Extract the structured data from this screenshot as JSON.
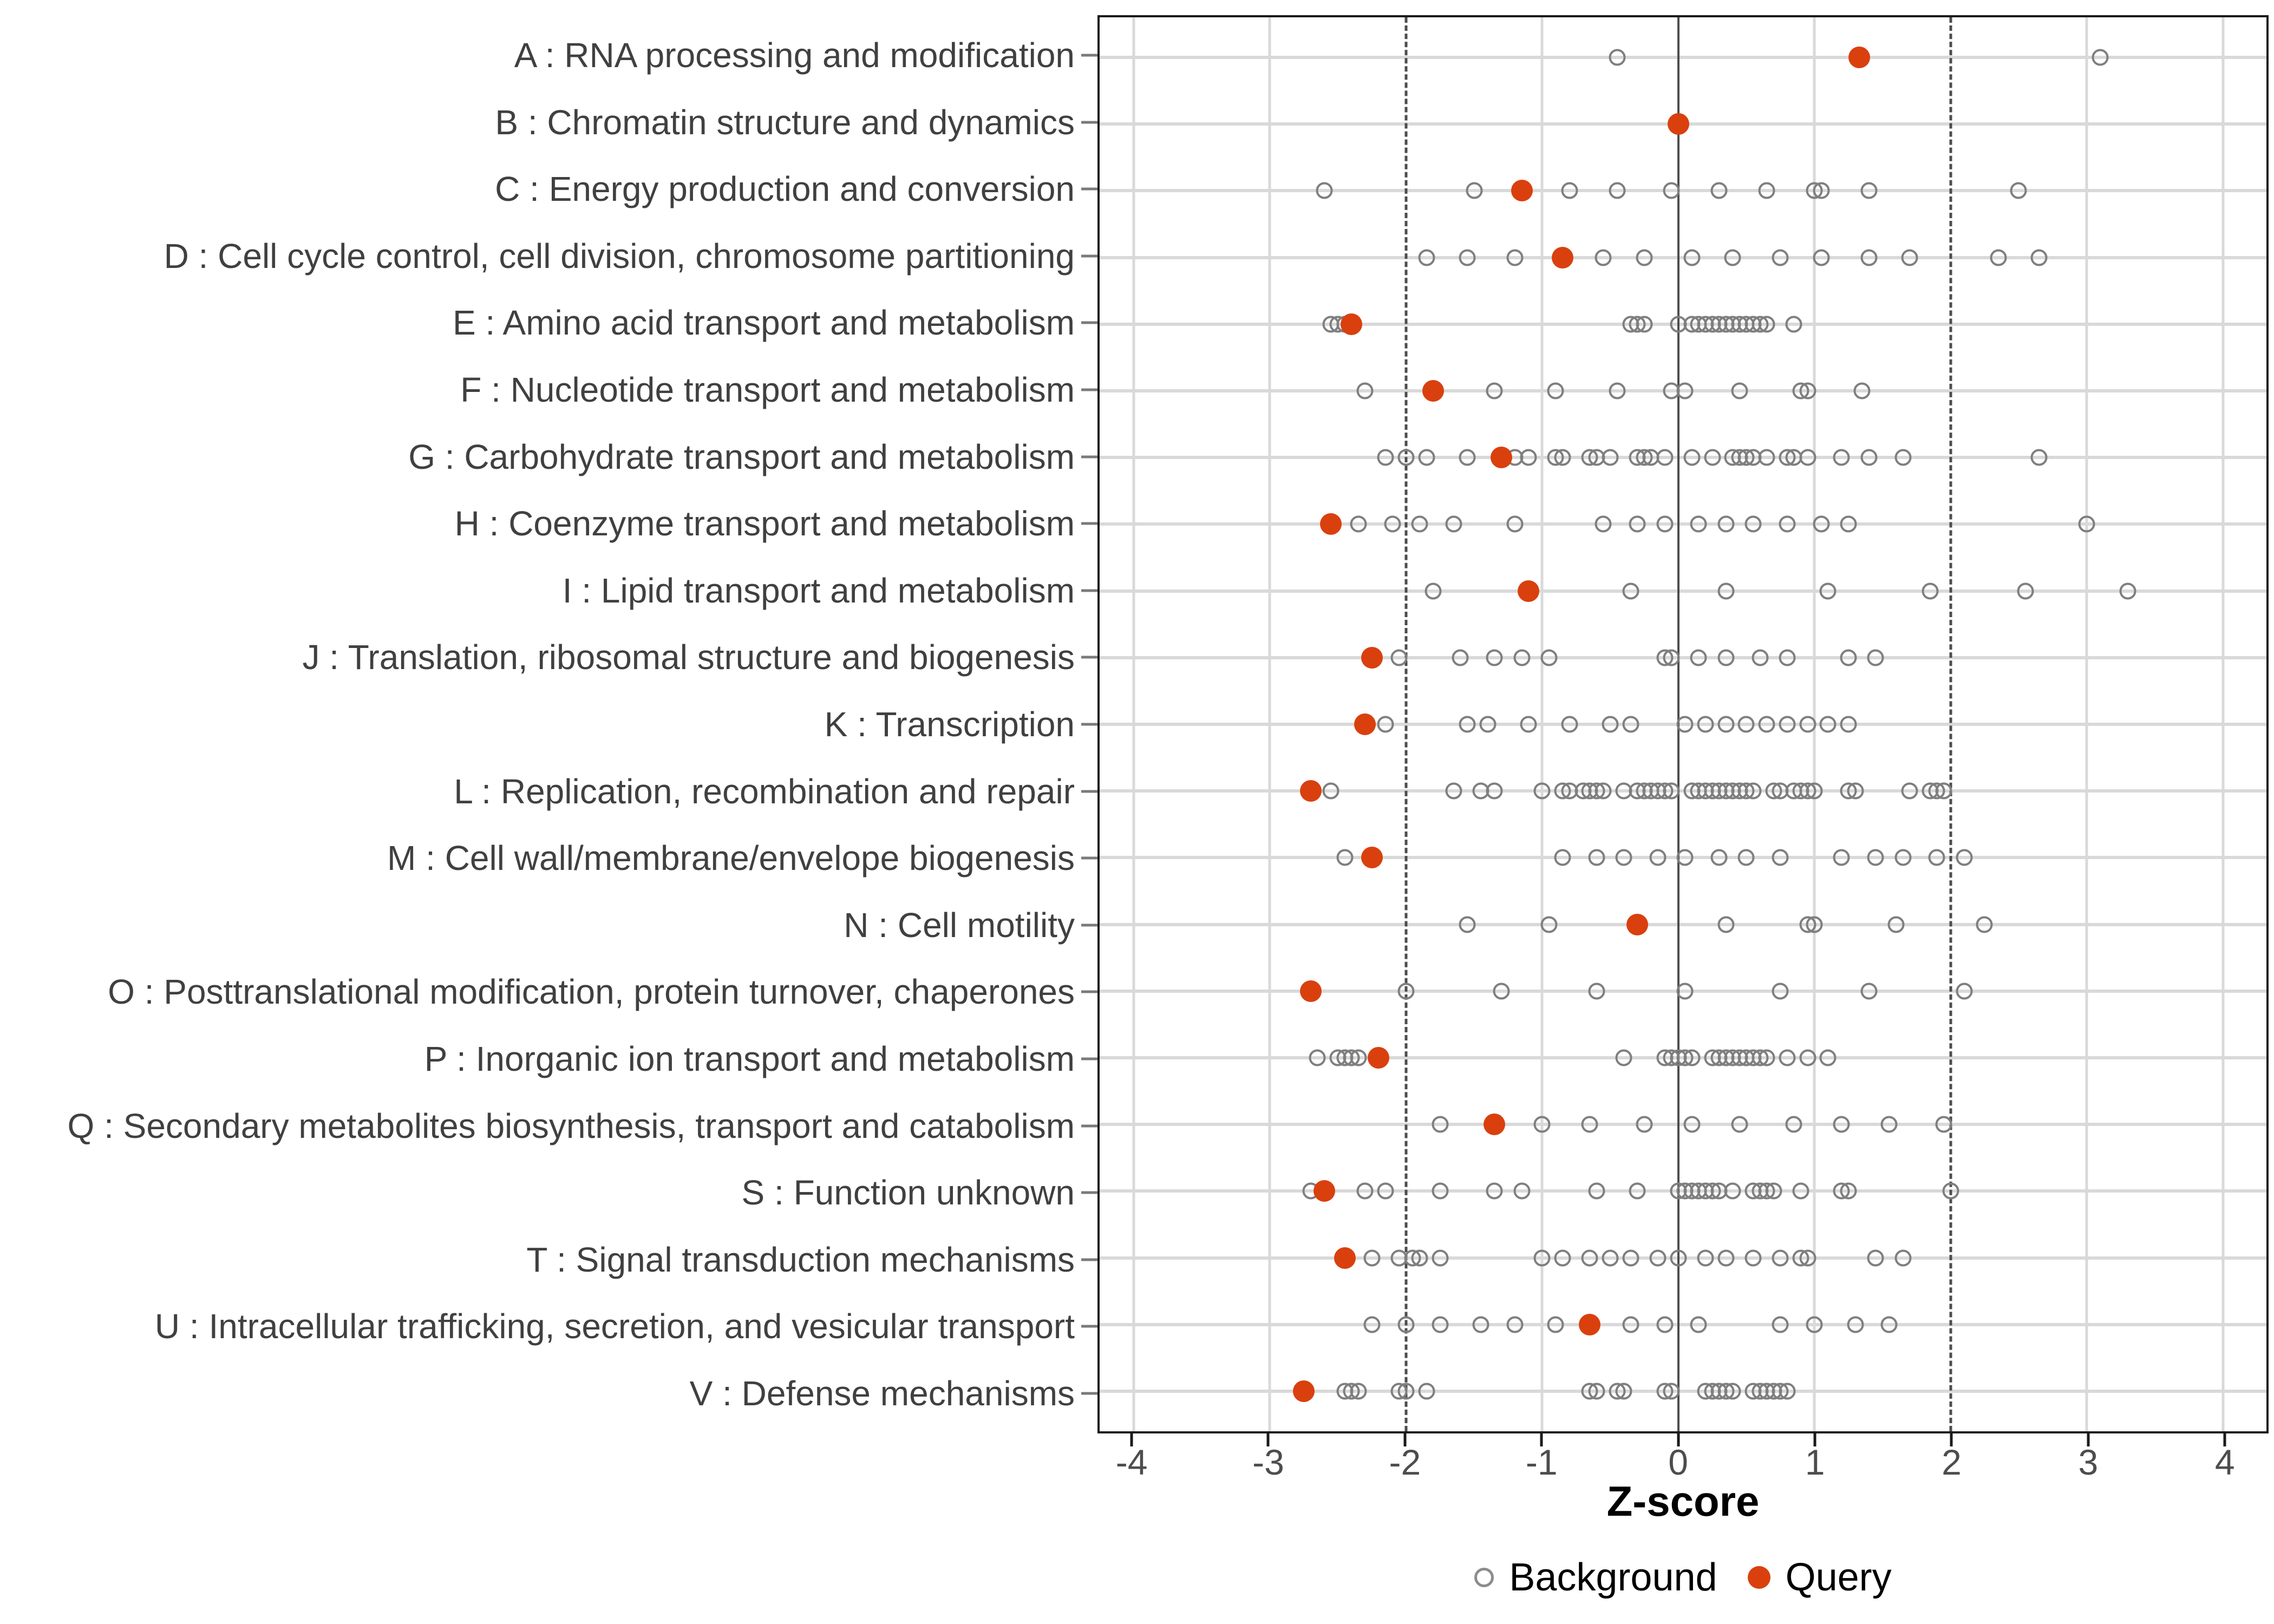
{
  "axis": {
    "x_title": "Z-score",
    "x_ticks": [
      -4,
      -3,
      -2,
      -1,
      0,
      1,
      2,
      3,
      4
    ],
    "x_range": [
      -4.25,
      4.32
    ]
  },
  "reference_lines": {
    "zero": 0,
    "dashed": [
      -2,
      2
    ]
  },
  "legend": {
    "background_label": "Background",
    "query_label": "Query"
  },
  "colors": {
    "query": "#D9400E",
    "background_stroke": "#7F7F7F",
    "gridline": "#D9D9D9",
    "reference_line": "#4D4D4D",
    "axis_text": "#404040"
  },
  "chart_data": {
    "type": "scatter",
    "subtype": "horizontal-dot-strip",
    "title": "",
    "xlabel": "Z-score",
    "ylabel": "",
    "xlim": [
      -4.25,
      4.32
    ],
    "grid": true,
    "legend_position": "bottom",
    "series_names": [
      "Background",
      "Query"
    ],
    "categories": [
      {
        "code": "A",
        "label": "A : RNA processing and modification",
        "query": 1.33,
        "background": [
          -0.45,
          3.1
        ]
      },
      {
        "code": "B",
        "label": "B : Chromatin structure and dynamics",
        "query": 0.0,
        "background": []
      },
      {
        "code": "C",
        "label": "C : Energy production and conversion",
        "query": -1.15,
        "background": [
          -2.6,
          -1.5,
          -0.8,
          -0.45,
          -0.05,
          0.3,
          0.65,
          1.0,
          1.05,
          1.4,
          2.5
        ]
      },
      {
        "code": "D",
        "label": "D : Cell cycle control, cell division, chromosome partitioning",
        "query": -0.85,
        "background": [
          -1.85,
          -1.55,
          -1.2,
          -0.55,
          -0.25,
          0.1,
          0.4,
          0.75,
          1.05,
          1.4,
          1.7,
          2.35,
          2.65
        ]
      },
      {
        "code": "E",
        "label": "E : Amino acid transport and metabolism",
        "query": -2.4,
        "background": [
          -2.55,
          -2.5,
          -2.45,
          -0.35,
          -0.3,
          -0.25,
          0.0,
          0.1,
          0.15,
          0.2,
          0.25,
          0.3,
          0.35,
          0.4,
          0.45,
          0.5,
          0.55,
          0.6,
          0.65,
          0.85
        ]
      },
      {
        "code": "F",
        "label": "F : Nucleotide transport and metabolism",
        "query": -1.8,
        "background": [
          -2.3,
          -1.35,
          -0.9,
          -0.45,
          -0.05,
          0.05,
          0.45,
          0.9,
          0.95,
          1.35
        ]
      },
      {
        "code": "G",
        "label": "G : Carbohydrate transport and metabolism",
        "query": -1.3,
        "background": [
          -2.15,
          -2.0,
          -1.85,
          -1.55,
          -1.2,
          -1.1,
          -0.9,
          -0.85,
          -0.65,
          -0.6,
          -0.5,
          -0.3,
          -0.25,
          -0.2,
          -0.1,
          0.1,
          0.25,
          0.4,
          0.45,
          0.5,
          0.55,
          0.65,
          0.8,
          0.85,
          0.95,
          1.2,
          1.4,
          1.65,
          2.65
        ]
      },
      {
        "code": "H",
        "label": "H : Coenzyme transport and metabolism",
        "query": -2.55,
        "background": [
          -2.35,
          -2.1,
          -1.9,
          -1.65,
          -1.2,
          -0.55,
          -0.3,
          -0.1,
          0.15,
          0.35,
          0.55,
          0.8,
          1.05,
          1.25,
          3.0
        ]
      },
      {
        "code": "I",
        "label": "I : Lipid transport and metabolism",
        "query": -1.1,
        "background": [
          -1.8,
          -0.35,
          0.35,
          1.1,
          1.85,
          2.55,
          3.3
        ]
      },
      {
        "code": "J",
        "label": "J : Translation, ribosomal structure and biogenesis",
        "query": -2.25,
        "background": [
          -2.05,
          -1.6,
          -1.35,
          -1.15,
          -0.95,
          -0.1,
          -0.05,
          0.15,
          0.35,
          0.6,
          0.8,
          1.25,
          1.45
        ]
      },
      {
        "code": "K",
        "label": "K : Transcription",
        "query": -2.3,
        "background": [
          -2.15,
          -1.55,
          -1.4,
          -1.1,
          -0.8,
          -0.5,
          -0.35,
          0.05,
          0.2,
          0.35,
          0.5,
          0.65,
          0.8,
          0.95,
          1.1,
          1.25
        ]
      },
      {
        "code": "L",
        "label": "L : Replication, recombination and repair",
        "query": -2.7,
        "background": [
          -2.55,
          -1.65,
          -1.45,
          -1.35,
          -1.0,
          -0.85,
          -0.8,
          -0.7,
          -0.65,
          -0.6,
          -0.55,
          -0.4,
          -0.3,
          -0.25,
          -0.2,
          -0.15,
          -0.1,
          -0.05,
          0.1,
          0.15,
          0.2,
          0.25,
          0.3,
          0.35,
          0.4,
          0.45,
          0.5,
          0.55,
          0.7,
          0.75,
          0.85,
          0.9,
          0.95,
          1.0,
          1.25,
          1.3,
          1.7,
          1.85,
          1.9,
          1.95
        ]
      },
      {
        "code": "M",
        "label": "M : Cell wall/membrane/envelope biogenesis",
        "query": -2.25,
        "background": [
          -2.45,
          -0.85,
          -0.6,
          -0.4,
          -0.15,
          0.05,
          0.3,
          0.5,
          0.75,
          1.2,
          1.45,
          1.65,
          1.9,
          2.1
        ]
      },
      {
        "code": "N",
        "label": "N : Cell motility",
        "query": -0.3,
        "background": [
          -1.55,
          -0.95,
          0.35,
          0.95,
          1.0,
          1.6,
          2.25
        ]
      },
      {
        "code": "O",
        "label": "O : Posttranslational modification, protein turnover, chaperones",
        "query": -2.7,
        "background": [
          -2.0,
          -1.3,
          -0.6,
          0.05,
          0.75,
          1.4,
          2.1
        ]
      },
      {
        "code": "P",
        "label": "P : Inorganic ion transport and metabolism",
        "query": -2.2,
        "background": [
          -2.65,
          -2.5,
          -2.45,
          -2.4,
          -2.35,
          -0.4,
          -0.1,
          -0.05,
          0.0,
          0.05,
          0.1,
          0.25,
          0.3,
          0.35,
          0.4,
          0.45,
          0.5,
          0.55,
          0.6,
          0.65,
          0.8,
          0.95,
          1.1
        ]
      },
      {
        "code": "Q",
        "label": "Q : Secondary metabolites biosynthesis, transport and catabolism",
        "query": -1.35,
        "background": [
          -1.75,
          -1.0,
          -0.65,
          -0.25,
          0.1,
          0.45,
          0.85,
          1.2,
          1.55,
          1.95
        ]
      },
      {
        "code": "S",
        "label": "S : Function unknown",
        "query": -2.6,
        "background": [
          -2.7,
          -2.3,
          -2.15,
          -1.75,
          -1.35,
          -1.15,
          -0.6,
          -0.3,
          0.0,
          0.05,
          0.1,
          0.15,
          0.2,
          0.25,
          0.3,
          0.4,
          0.55,
          0.6,
          0.65,
          0.7,
          0.9,
          1.2,
          1.25,
          2.0
        ]
      },
      {
        "code": "T",
        "label": "T : Signal transduction mechanisms",
        "query": -2.45,
        "background": [
          -2.25,
          -2.05,
          -1.95,
          -1.9,
          -1.75,
          -1.0,
          -0.85,
          -0.65,
          -0.5,
          -0.35,
          -0.15,
          0.0,
          0.2,
          0.35,
          0.55,
          0.75,
          0.9,
          0.95,
          1.45,
          1.65
        ]
      },
      {
        "code": "U",
        "label": "U : Intracellular trafficking, secretion, and vesicular transport",
        "query": -0.65,
        "background": [
          -2.25,
          -2.0,
          -1.75,
          -1.45,
          -1.2,
          -0.9,
          -0.35,
          -0.1,
          0.15,
          0.75,
          1.0,
          1.3,
          1.55
        ]
      },
      {
        "code": "V",
        "label": "V : Defense mechanisms",
        "query": -2.75,
        "background": [
          -2.45,
          -2.4,
          -2.35,
          -2.05,
          -2.0,
          -1.85,
          -0.65,
          -0.6,
          -0.45,
          -0.4,
          -0.1,
          -0.05,
          0.2,
          0.25,
          0.3,
          0.35,
          0.4,
          0.55,
          0.6,
          0.65,
          0.7,
          0.75,
          0.8
        ]
      }
    ]
  }
}
